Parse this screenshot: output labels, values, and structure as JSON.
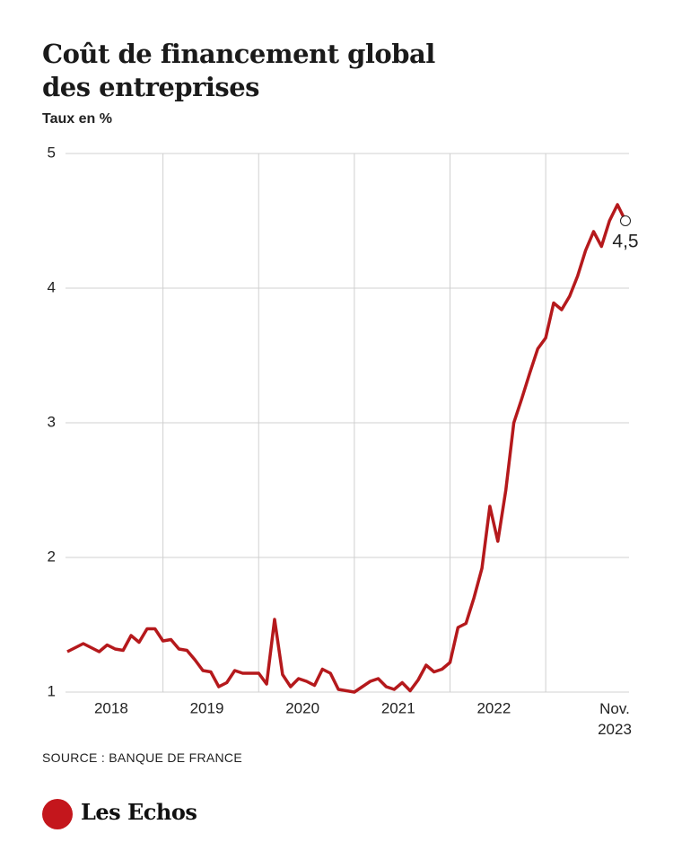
{
  "chart_data": {
    "type": "line",
    "title": "Coût de financement global des entreprises",
    "subtitle": "Taux en %",
    "source": "SOURCE : BANQUE DE FRANCE",
    "brand": "Les Echos",
    "x": [
      0,
      1,
      2,
      3,
      4,
      5,
      6,
      7,
      8,
      9,
      10,
      11,
      12,
      13,
      14,
      15,
      16,
      17,
      18,
      19,
      20,
      21,
      22,
      23,
      24,
      25,
      26,
      27,
      28,
      29,
      30,
      31,
      32,
      33,
      34,
      35,
      36,
      37,
      38,
      39,
      40,
      41,
      42,
      43,
      44,
      45,
      46,
      47,
      48,
      49,
      50,
      51,
      52,
      53,
      54,
      55,
      56,
      57,
      58,
      59,
      60,
      61,
      62,
      63,
      64,
      65,
      66,
      67,
      68,
      69,
      70
    ],
    "series": [
      {
        "name": "Taux",
        "color": "#b5191c",
        "values": [
          1.3,
          1.33,
          1.36,
          1.33,
          1.3,
          1.35,
          1.32,
          1.31,
          1.42,
          1.37,
          1.47,
          1.47,
          1.38,
          1.39,
          1.32,
          1.31,
          1.24,
          1.16,
          1.15,
          1.04,
          1.07,
          1.16,
          1.14,
          1.14,
          1.14,
          1.06,
          1.54,
          1.13,
          1.04,
          1.1,
          1.08,
          1.05,
          1.17,
          1.14,
          1.02,
          1.01,
          1.0,
          1.04,
          1.08,
          1.1,
          1.04,
          1.02,
          1.07,
          1.01,
          1.09,
          1.2,
          1.15,
          1.17,
          1.22,
          1.48,
          1.51,
          1.7,
          1.92,
          2.38,
          2.12,
          2.5,
          3.0,
          3.18,
          3.37,
          3.55,
          3.63,
          3.89,
          3.84,
          3.94,
          4.09,
          4.28,
          4.42,
          4.31,
          4.5,
          4.62,
          4.5
        ],
        "value_labels": [
          null,
          null,
          null,
          null,
          null,
          null,
          null,
          null,
          null,
          null,
          null,
          null,
          null,
          null,
          null,
          null,
          null,
          null,
          null,
          null,
          null,
          null,
          null,
          null,
          null,
          null,
          null,
          null,
          null,
          null,
          null,
          null,
          null,
          null,
          null,
          null,
          null,
          null,
          null,
          null,
          null,
          null,
          null,
          null,
          null,
          null,
          null,
          null,
          null,
          null,
          null,
          null,
          null,
          null,
          null,
          null,
          null,
          null,
          null,
          null,
          null,
          null,
          null,
          null,
          null,
          null,
          null,
          null,
          null,
          null,
          "4,5"
        ]
      }
    ],
    "xlim": [
      0,
      70
    ],
    "xticks": [
      {
        "value": 5.5,
        "label": "2018"
      },
      {
        "value": 17.5,
        "label": "2019"
      },
      {
        "value": 29.5,
        "label": "2020"
      },
      {
        "value": 41.5,
        "label": "2021"
      },
      {
        "value": 53.5,
        "label": "2022"
      },
      {
        "value": 70,
        "label": "Nov. 2023"
      }
    ],
    "xgrid": [
      12,
      24,
      36,
      48,
      60
    ],
    "ylim": [
      1,
      5
    ],
    "yticks": [
      1,
      2,
      3,
      4,
      5
    ],
    "grid": true
  }
}
